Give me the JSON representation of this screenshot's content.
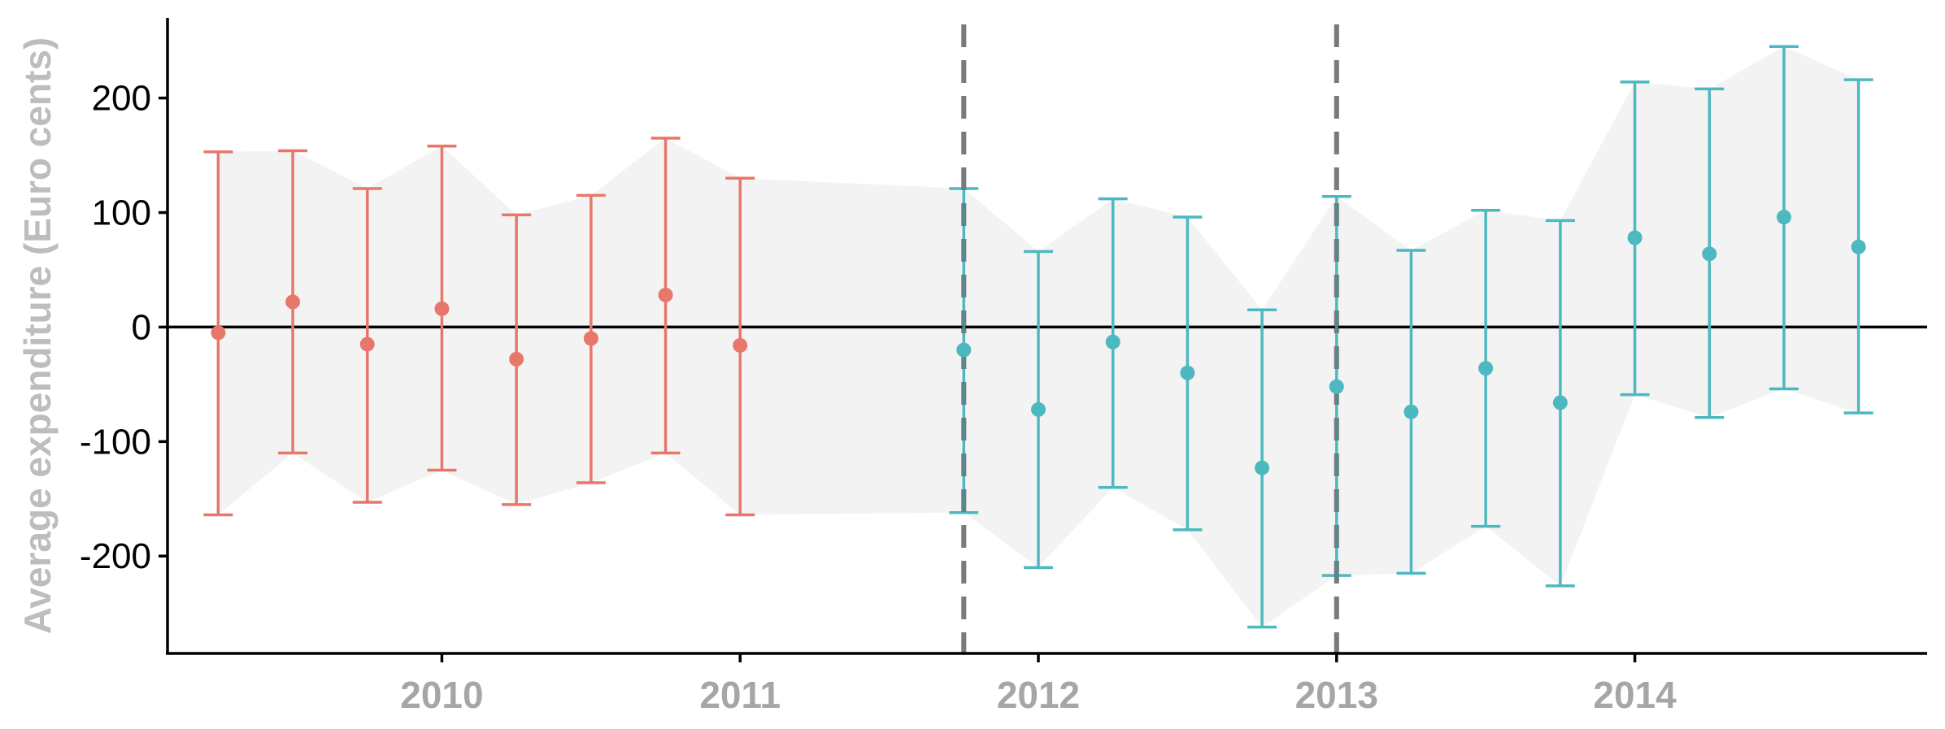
{
  "chart_data": {
    "type": "scatter",
    "title": "",
    "xlabel": "",
    "ylabel": "Average expenditure (Euro cents)",
    "xlim": [
      2009.08,
      2014.98
    ],
    "ylim": [
      -285,
      270
    ],
    "xticks": [
      2010,
      2011,
      2012,
      2013,
      2014
    ],
    "yticks": [
      -200,
      -100,
      0,
      100,
      200
    ],
    "ytick_labels": [
      "-200",
      "-100",
      "0",
      "100",
      "200"
    ],
    "xtick_labels": [
      "2010",
      "2011",
      "2012",
      "2013",
      "2014"
    ],
    "reference_line_y": 0,
    "vertical_dashed_lines_x": [
      2011.75,
      2013.0
    ],
    "band_color": "#f3f3f3",
    "series": [
      {
        "color": "#e8776b",
        "points": [
          {
            "x": 2009.25,
            "y": -5,
            "low": -164,
            "high": 153
          },
          {
            "x": 2009.5,
            "y": 22,
            "low": -110,
            "high": 154
          },
          {
            "x": 2009.75,
            "y": -15,
            "low": -153,
            "high": 121
          },
          {
            "x": 2010.0,
            "y": 16,
            "low": -125,
            "high": 158
          },
          {
            "x": 2010.25,
            "y": -28,
            "low": -155,
            "high": 98
          },
          {
            "x": 2010.5,
            "y": -10,
            "low": -136,
            "high": 115
          },
          {
            "x": 2010.75,
            "y": 28,
            "low": -110,
            "high": 165
          },
          {
            "x": 2011.0,
            "y": -16,
            "low": -164,
            "high": 130
          }
        ]
      },
      {
        "color": "#4db8bf",
        "points": [
          {
            "x": 2011.75,
            "y": -20,
            "low": -162,
            "high": 121
          },
          {
            "x": 2012.0,
            "y": -72,
            "low": -210,
            "high": 66
          },
          {
            "x": 2012.25,
            "y": -13,
            "low": -140,
            "high": 112
          },
          {
            "x": 2012.5,
            "y": -40,
            "low": -177,
            "high": 96
          },
          {
            "x": 2012.75,
            "y": -123,
            "low": -262,
            "high": 15
          },
          {
            "x": 2013.0,
            "y": -52,
            "low": -217,
            "high": 114
          },
          {
            "x": 2013.25,
            "y": -74,
            "low": -215,
            "high": 67
          },
          {
            "x": 2013.5,
            "y": -36,
            "low": -174,
            "high": 102
          },
          {
            "x": 2013.75,
            "y": -66,
            "low": -226,
            "high": 93
          },
          {
            "x": 2014.0,
            "y": 78,
            "low": -59,
            "high": 214
          },
          {
            "x": 2014.25,
            "y": 64,
            "low": -79,
            "high": 208
          },
          {
            "x": 2014.5,
            "y": 96,
            "low": -54,
            "high": 245
          },
          {
            "x": 2014.75,
            "y": 70,
            "low": -75,
            "high": 216
          }
        ]
      }
    ],
    "grid": false,
    "legend": "none"
  }
}
